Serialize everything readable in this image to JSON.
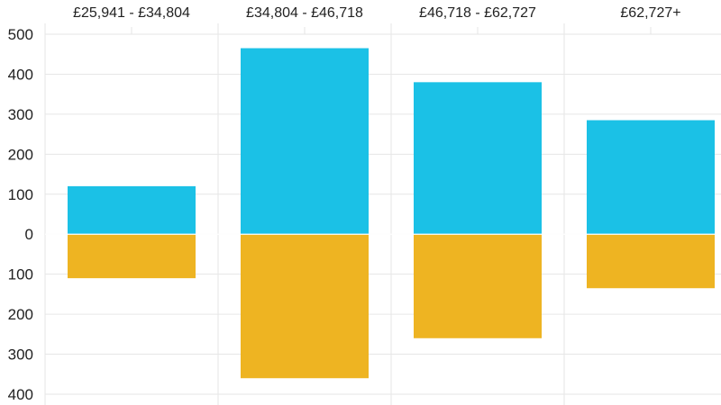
{
  "chart_data": {
    "type": "bar",
    "categories": [
      "£25,941 - £34,804",
      "£34,804 - £46,718",
      "£46,718 - £62,727",
      "£62,727+"
    ],
    "series": [
      {
        "color": "#1BC1E6",
        "values": [
          120,
          465,
          380,
          285
        ]
      },
      {
        "color": "#EEB422",
        "values": [
          -110,
          -360,
          -260,
          -135
        ]
      }
    ],
    "ylim": [
      -400,
      500
    ],
    "yticks": [
      {
        "value": 500,
        "label": "500"
      },
      {
        "value": 400,
        "label": "400"
      },
      {
        "value": 300,
        "label": "300"
      },
      {
        "value": 200,
        "label": "200"
      },
      {
        "value": 100,
        "label": "100"
      },
      {
        "value": 0,
        "label": "0"
      },
      {
        "value": -100,
        "label": "100"
      },
      {
        "value": -200,
        "label": "200"
      },
      {
        "value": -300,
        "label": "300"
      },
      {
        "value": -400,
        "label": "400"
      }
    ],
    "xlabel": "",
    "ylabel": "",
    "title": "",
    "grid": true,
    "gridColor": "#E6E6E6"
  }
}
